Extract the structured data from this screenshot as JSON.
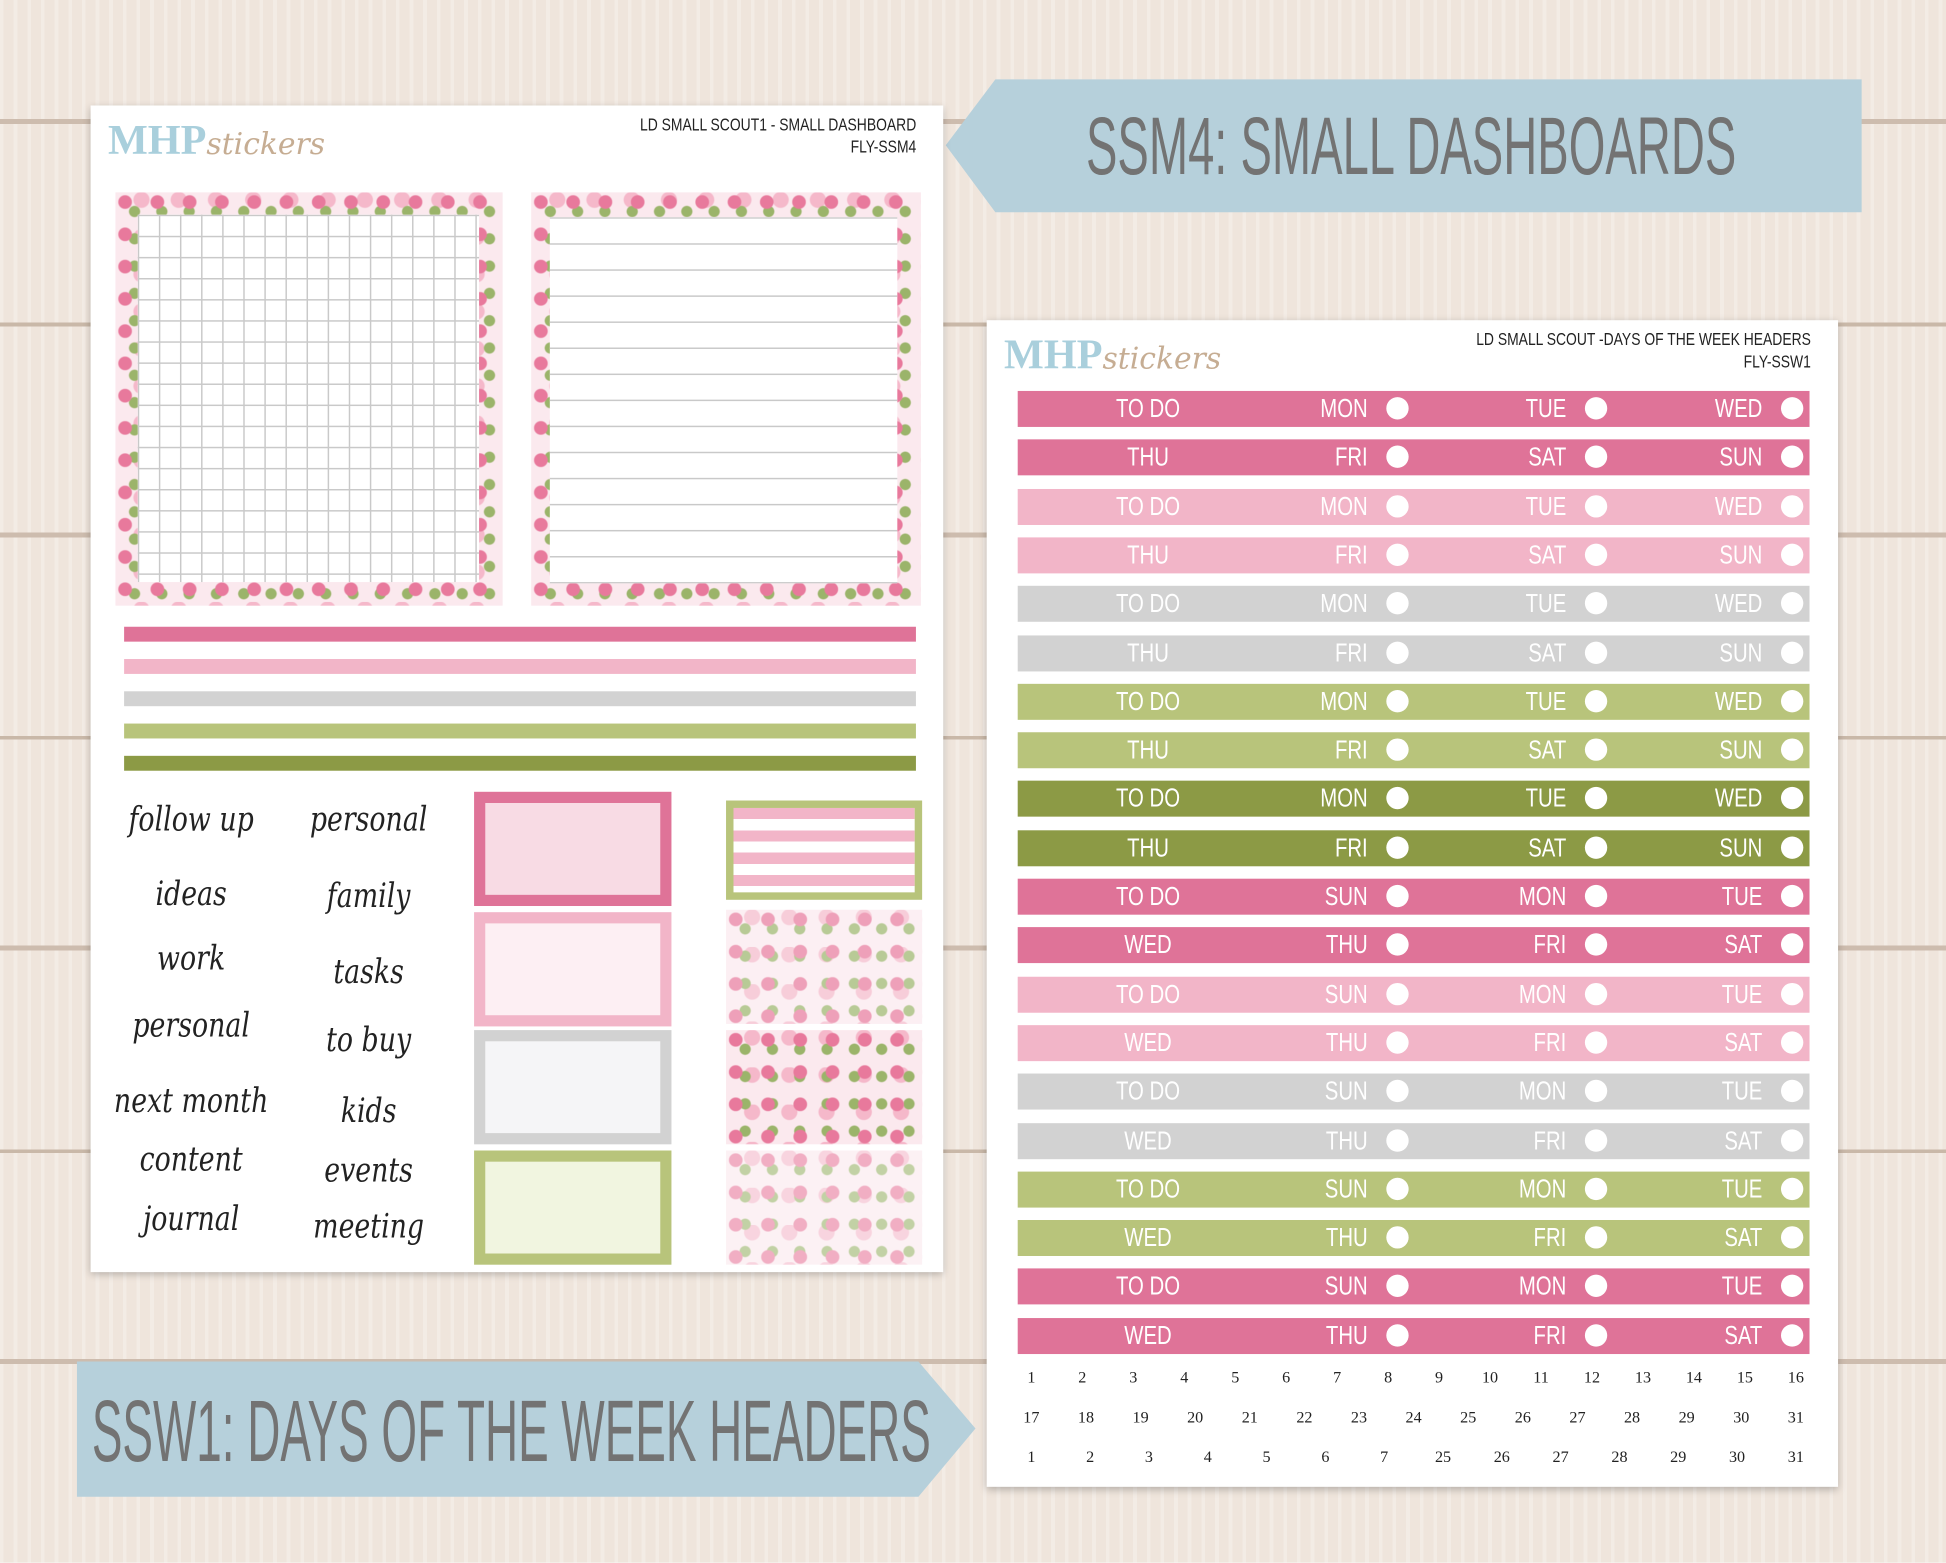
{
  "banners": {
    "top": "SSM4: SMALL DASHBOARDS",
    "bottom": "SSW1: DAYS OF THE WEEK HEADERS"
  },
  "sheet_left": {
    "logo": {
      "main": "MHP",
      "script": "stickers"
    },
    "title": "LD SMALL SCOUT1 - SMALL DASHBOARD",
    "code": "FLY-SSM4",
    "words_left": [
      "follow up",
      "ideas",
      "work",
      "personal",
      "next month",
      "content",
      "journal"
    ],
    "words_right": [
      "personal",
      "family",
      "tasks",
      "to buy",
      "kids",
      "events",
      "meeting"
    ]
  },
  "sheet_right": {
    "logo": {
      "main": "MHP",
      "script": "stickers"
    },
    "title": "LD SMALL SCOUT -DAYS OF THE WEEK HEADERS",
    "code": "FLY-SSW1",
    "header_rows": [
      {
        "color": "#df7398",
        "labels": [
          "TO DO",
          "MON",
          "TUE",
          "WED"
        ]
      },
      {
        "color": "#df7398",
        "labels": [
          "THU",
          "FRI",
          "SAT",
          "SUN"
        ]
      },
      {
        "color": "#f2b5c8",
        "labels": [
          "TO DO",
          "MON",
          "TUE",
          "WED"
        ]
      },
      {
        "color": "#f2b5c8",
        "labels": [
          "THU",
          "FRI",
          "SAT",
          "SUN"
        ]
      },
      {
        "color": "#d2d2d2",
        "labels": [
          "TO DO",
          "MON",
          "TUE",
          "WED"
        ]
      },
      {
        "color": "#d2d2d2",
        "labels": [
          "THU",
          "FRI",
          "SAT",
          "SUN"
        ]
      },
      {
        "color": "#b8c47b",
        "labels": [
          "TO DO",
          "MON",
          "TUE",
          "WED"
        ]
      },
      {
        "color": "#b8c47b",
        "labels": [
          "THU",
          "FRI",
          "SAT",
          "SUN"
        ]
      },
      {
        "color": "#8c9a45",
        "labels": [
          "TO DO",
          "MON",
          "TUE",
          "WED"
        ]
      },
      {
        "color": "#8c9a45",
        "labels": [
          "THU",
          "FRI",
          "SAT",
          "SUN"
        ]
      },
      {
        "color": "#df7398",
        "labels": [
          "TO DO",
          "SUN",
          "MON",
          "TUE"
        ]
      },
      {
        "color": "#df7398",
        "labels": [
          "WED",
          "THU",
          "FRI",
          "SAT"
        ]
      },
      {
        "color": "#f2b5c8",
        "labels": [
          "TO DO",
          "SUN",
          "MON",
          "TUE"
        ]
      },
      {
        "color": "#f2b5c8",
        "labels": [
          "WED",
          "THU",
          "FRI",
          "SAT"
        ]
      },
      {
        "color": "#d2d2d2",
        "labels": [
          "TO DO",
          "SUN",
          "MON",
          "TUE"
        ]
      },
      {
        "color": "#d2d2d2",
        "labels": [
          "WED",
          "THU",
          "FRI",
          "SAT"
        ]
      },
      {
        "color": "#b8c47b",
        "labels": [
          "TO DO",
          "SUN",
          "MON",
          "TUE"
        ]
      },
      {
        "color": "#b8c47b",
        "labels": [
          "WED",
          "THU",
          "FRI",
          "SAT"
        ]
      },
      {
        "color": "#df7398",
        "labels": [
          "TO DO",
          "SUN",
          "MON",
          "TUE"
        ]
      },
      {
        "color": "#df7398",
        "labels": [
          "WED",
          "THU",
          "FRI",
          "SAT"
        ]
      }
    ],
    "date_rows": [
      [
        1,
        2,
        3,
        4,
        5,
        6,
        7,
        8,
        9,
        10,
        11,
        12,
        13,
        14,
        15,
        16
      ],
      [
        17,
        18,
        19,
        20,
        21,
        22,
        23,
        24,
        25,
        26,
        27,
        28,
        29,
        30,
        31
      ],
      [
        1,
        2,
        3,
        4,
        5,
        6,
        7,
        25,
        26,
        27,
        28,
        29,
        30,
        31
      ]
    ]
  }
}
